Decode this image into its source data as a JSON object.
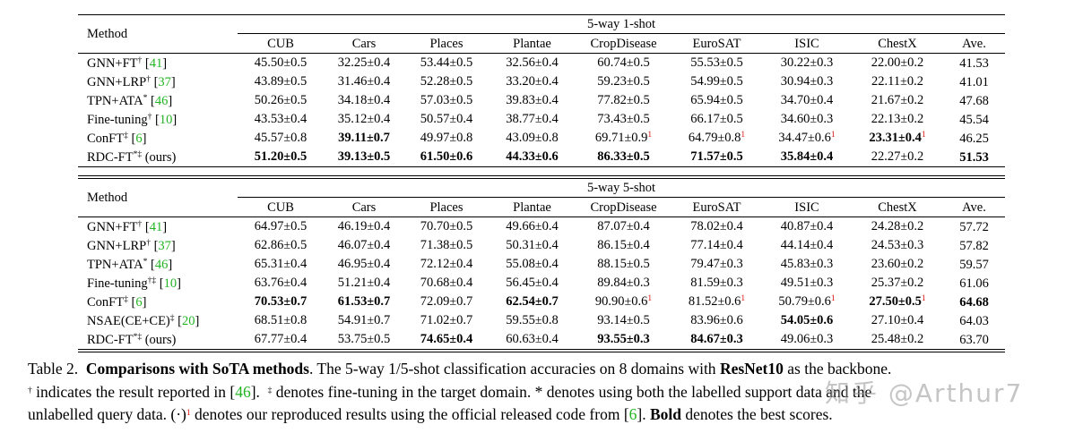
{
  "headers": {
    "method": "Method",
    "columns": [
      "CUB",
      "Cars",
      "Places",
      "Plantae",
      "CropDisease",
      "EuroSAT",
      "ISIC",
      "ChestX",
      "Ave."
    ]
  },
  "tables": [
    {
      "group_label": "5-way 1-shot",
      "rows": [
        {
          "method": "GNN+FT",
          "marks": "†",
          "ref": "41",
          "suffix": "",
          "cells": [
            {
              "v": "45.50",
              "e": "0.5"
            },
            {
              "v": "32.25",
              "e": "0.4"
            },
            {
              "v": "53.44",
              "e": "0.5"
            },
            {
              "v": "32.56",
              "e": "0.4"
            },
            {
              "v": "60.74",
              "e": "0.5"
            },
            {
              "v": "55.53",
              "e": "0.5"
            },
            {
              "v": "30.22",
              "e": "0.3"
            },
            {
              "v": "22.00",
              "e": "0.2"
            },
            {
              "v": "41.53"
            }
          ]
        },
        {
          "method": "GNN+LRP",
          "marks": "†",
          "ref": "37",
          "suffix": "",
          "cells": [
            {
              "v": "43.89",
              "e": "0.5"
            },
            {
              "v": "31.46",
              "e": "0.4"
            },
            {
              "v": "52.28",
              "e": "0.5"
            },
            {
              "v": "33.20",
              "e": "0.4"
            },
            {
              "v": "59.23",
              "e": "0.5"
            },
            {
              "v": "54.99",
              "e": "0.5"
            },
            {
              "v": "30.94",
              "e": "0.3"
            },
            {
              "v": "22.11",
              "e": "0.2"
            },
            {
              "v": "41.01"
            }
          ]
        },
        {
          "method": "TPN+ATA",
          "marks": "*",
          "ref": "46",
          "suffix": "",
          "cells": [
            {
              "v": "50.26",
              "e": "0.5"
            },
            {
              "v": "34.18",
              "e": "0.4"
            },
            {
              "v": "57.03",
              "e": "0.5"
            },
            {
              "v": "39.83",
              "e": "0.4"
            },
            {
              "v": "77.82",
              "e": "0.5"
            },
            {
              "v": "65.94",
              "e": "0.5"
            },
            {
              "v": "34.70",
              "e": "0.4"
            },
            {
              "v": "21.67",
              "e": "0.2"
            },
            {
              "v": "47.68"
            }
          ]
        },
        {
          "method": "Fine-tuning",
          "marks": "†",
          "ref": "10",
          "suffix": "",
          "cells": [
            {
              "v": "43.53",
              "e": "0.4"
            },
            {
              "v": "35.12",
              "e": "0.4"
            },
            {
              "v": "50.57",
              "e": "0.4"
            },
            {
              "v": "38.77",
              "e": "0.4"
            },
            {
              "v": "73.43",
              "e": "0.5"
            },
            {
              "v": "66.17",
              "e": "0.5"
            },
            {
              "v": "34.60",
              "e": "0.3"
            },
            {
              "v": "22.13",
              "e": "0.2"
            },
            {
              "v": "45.54"
            }
          ]
        },
        {
          "method": "ConFT",
          "marks": "‡",
          "ref": "6",
          "suffix": "",
          "cells": [
            {
              "v": "45.57",
              "e": "0.8"
            },
            {
              "v": "39.11",
              "e": "0.7",
              "bold": true
            },
            {
              "v": "49.97",
              "e": "0.8"
            },
            {
              "v": "43.09",
              "e": "0.8"
            },
            {
              "v": "69.71",
              "e": "0.9",
              "rep": "1"
            },
            {
              "v": "64.79",
              "e": "0.8",
              "rep": "1"
            },
            {
              "v": "34.47",
              "e": "0.6",
              "rep": "1"
            },
            {
              "v": "23.31",
              "e": "0.4",
              "bold": true,
              "rep": "1"
            },
            {
              "v": "46.25"
            }
          ]
        },
        {
          "method": "RDC-FT",
          "marks": "*‡",
          "ref": "",
          "suffix": "(ours)",
          "cells": [
            {
              "v": "51.20",
              "e": "0.5",
              "bold": true
            },
            {
              "v": "39.13",
              "e": "0.5",
              "bold": true
            },
            {
              "v": "61.50",
              "e": "0.6",
              "bold": true
            },
            {
              "v": "44.33",
              "e": "0.6",
              "bold": true
            },
            {
              "v": "86.33",
              "e": "0.5",
              "bold": true
            },
            {
              "v": "71.57",
              "e": "0.5",
              "bold": true
            },
            {
              "v": "35.84",
              "e": "0.4",
              "bold": true
            },
            {
              "v": "22.27",
              "e": "0.2"
            },
            {
              "v": "51.53",
              "bold": true
            }
          ]
        }
      ]
    },
    {
      "group_label": "5-way 5-shot",
      "rows": [
        {
          "method": "GNN+FT",
          "marks": "†",
          "ref": "41",
          "suffix": "",
          "cells": [
            {
              "v": "64.97",
              "e": "0.5"
            },
            {
              "v": "46.19",
              "e": "0.4"
            },
            {
              "v": "70.70",
              "e": "0.5"
            },
            {
              "v": "49.66",
              "e": "0.4"
            },
            {
              "v": "87.07",
              "e": "0.4"
            },
            {
              "v": "78.02",
              "e": "0.4"
            },
            {
              "v": "40.87",
              "e": "0.4"
            },
            {
              "v": "24.28",
              "e": "0.2"
            },
            {
              "v": "57.72"
            }
          ]
        },
        {
          "method": "GNN+LRP",
          "marks": "†",
          "ref": "37",
          "suffix": "",
          "cells": [
            {
              "v": "62.86",
              "e": "0.5"
            },
            {
              "v": "46.07",
              "e": "0.4"
            },
            {
              "v": "71.38",
              "e": "0.5"
            },
            {
              "v": "50.31",
              "e": "0.4"
            },
            {
              "v": "86.15",
              "e": "0.4"
            },
            {
              "v": "77.14",
              "e": "0.4"
            },
            {
              "v": "44.14",
              "e": "0.4"
            },
            {
              "v": "24.53",
              "e": "0.3"
            },
            {
              "v": "57.82"
            }
          ]
        },
        {
          "method": "TPN+ATA",
          "marks": "*",
          "ref": "46",
          "suffix": "",
          "cells": [
            {
              "v": "65.31",
              "e": "0.4"
            },
            {
              "v": "46.95",
              "e": "0.4"
            },
            {
              "v": "72.12",
              "e": "0.4"
            },
            {
              "v": "55.08",
              "e": "0.4"
            },
            {
              "v": "88.15",
              "e": "0.5"
            },
            {
              "v": "79.47",
              "e": "0.3"
            },
            {
              "v": "45.83",
              "e": "0.3"
            },
            {
              "v": "23.60",
              "e": "0.2"
            },
            {
              "v": "59.57"
            }
          ]
        },
        {
          "method": "Fine-tuning",
          "marks": "†‡",
          "ref": "10",
          "suffix": "",
          "cells": [
            {
              "v": "63.76",
              "e": "0.4"
            },
            {
              "v": "51.21",
              "e": "0.4"
            },
            {
              "v": "70.68",
              "e": "0.4"
            },
            {
              "v": "56.45",
              "e": "0.4"
            },
            {
              "v": "89.84",
              "e": "0.3"
            },
            {
              "v": "81.59",
              "e": "0.3"
            },
            {
              "v": "49.51",
              "e": "0.3"
            },
            {
              "v": "25.37",
              "e": "0.2"
            },
            {
              "v": "61.06"
            }
          ]
        },
        {
          "method": "ConFT",
          "marks": "‡",
          "ref": "6",
          "suffix": "",
          "cells": [
            {
              "v": "70.53",
              "e": "0.7",
              "bold": true
            },
            {
              "v": "61.53",
              "e": "0.7",
              "bold": true
            },
            {
              "v": "72.09",
              "e": "0.7"
            },
            {
              "v": "62.54",
              "e": "0.7",
              "bold": true
            },
            {
              "v": "90.90",
              "e": "0.6",
              "rep": "1"
            },
            {
              "v": "81.52",
              "e": "0.6",
              "rep": "1"
            },
            {
              "v": "50.79",
              "e": "0.6",
              "rep": "1"
            },
            {
              "v": "27.50",
              "e": "0.5",
              "bold": true,
              "rep": "1"
            },
            {
              "v": "64.68",
              "bold": true
            }
          ]
        },
        {
          "method": "NSAE(CE+CE)",
          "marks": "‡",
          "ref": "20",
          "suffix": "",
          "cells": [
            {
              "v": "68.51",
              "e": "0.8"
            },
            {
              "v": "54.91",
              "e": "0.7"
            },
            {
              "v": "71.02",
              "e": "0.7"
            },
            {
              "v": "59.55",
              "e": "0.8"
            },
            {
              "v": "93.14",
              "e": "0.5"
            },
            {
              "v": "83.96",
              "e": "0.6"
            },
            {
              "v": "54.05",
              "e": "0.6",
              "bold": true
            },
            {
              "v": "27.10",
              "e": "0.4"
            },
            {
              "v": "64.03"
            }
          ]
        },
        {
          "method": "RDC-FT",
          "marks": "*‡",
          "ref": "",
          "suffix": "(ours)",
          "cells": [
            {
              "v": "67.77",
              "e": "0.4"
            },
            {
              "v": "53.75",
              "e": "0.5"
            },
            {
              "v": "74.65",
              "e": "0.4",
              "bold": true
            },
            {
              "v": "60.63",
              "e": "0.4"
            },
            {
              "v": "93.55",
              "e": "0.3",
              "bold": true
            },
            {
              "v": "84.67",
              "e": "0.3",
              "bold": true
            },
            {
              "v": "49.06",
              "e": "0.3"
            },
            {
              "v": "25.48",
              "e": "0.2"
            },
            {
              "v": "63.70"
            }
          ]
        }
      ]
    }
  ],
  "caption": {
    "label": "Table 2.",
    "title": "Comparisons with SoTA methods",
    "text1": ". The 5-way 1/5-shot classification accuracies on 8 domains with ",
    "backbone": "ResNet10",
    "text2": " as the backbone.",
    "dagger_mark": "†",
    "dagger_text": " indicates the result reported in [",
    "dagger_ref": "46",
    "dagger_end": "].",
    "ddagger_mark": "‡",
    "ddagger_text": " denotes fine-tuning in the target domain. * denotes using both the labelled support data and the",
    "line3_text": "unlabelled query data. (·)",
    "line3_sup": "1",
    "line3_text2": " denotes our reproduced results using the official released code from [",
    "line3_ref": "6",
    "line3_end": "]. ",
    "bold_word": "Bold",
    "line3_tail": " denotes the best scores."
  },
  "watermark": "知乎 @Arthur7"
}
